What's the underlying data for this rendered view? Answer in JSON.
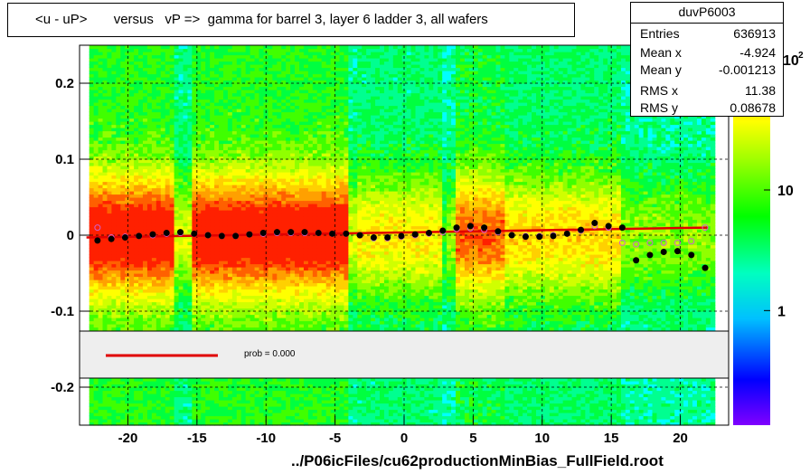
{
  "title": "<u - uP>       versus   vP =>  gamma for barrel 3, layer 6 ladder 3, all wafers",
  "footer": "../P06icFiles/cu62productionMinBias_FullField.root",
  "stats": {
    "name": "duvP6003",
    "rows": [
      {
        "key": "Entries",
        "value": "636913"
      },
      {
        "key": "Mean x",
        "value": "-4.924"
      },
      {
        "key": "Mean y",
        "value": "-0.001213"
      },
      {
        "key": "RMS x",
        "value": "11.38"
      },
      {
        "key": "RMS y",
        "value": "0.08678"
      }
    ]
  },
  "fit_legend": {
    "label": "prob = 0.000",
    "line_color": "#e00000"
  },
  "chart_data": {
    "type": "heatmap",
    "title": "<u - uP>       versus   vP =>  gamma for barrel 3, layer 6 ladder 3, all wafers",
    "xlabel": "",
    "ylabel": "",
    "xlim": [
      -23.5,
      23.5
    ],
    "ylim": [
      -0.25,
      0.25
    ],
    "x_ticks": [
      -20,
      -15,
      -10,
      -5,
      0,
      5,
      10,
      15,
      20
    ],
    "y_ticks": [
      -0.2,
      -0.1,
      0,
      0.1,
      0.2
    ],
    "y_tick_labels": [
      "-0.2",
      "-0.1",
      "0",
      "0.1",
      "0.2"
    ],
    "z_scale": "log",
    "z_ticks": [
      1,
      10
    ],
    "z_tick_labels": [
      "1",
      "10"
    ],
    "z_top_label": "10",
    "z_top_exponent": "2",
    "grid": true,
    "profile_mean": {
      "name": "mean",
      "color": "#000000",
      "x": [
        -22.2,
        -21.2,
        -20.2,
        -19.2,
        -18.2,
        -17.2,
        -16.2,
        -15.2,
        -14.2,
        -13.2,
        -12.2,
        -11.2,
        -10.2,
        -9.2,
        -8.2,
        -7.2,
        -6.2,
        -5.2,
        -4.2,
        -3.2,
        -2.2,
        -1.2,
        -0.2,
        0.8,
        1.8,
        2.8,
        3.8,
        4.8,
        5.8,
        6.8,
        7.8,
        8.8,
        9.8,
        10.8,
        11.8,
        12.8,
        13.8,
        14.8,
        15.8,
        16.8,
        17.8,
        18.8,
        19.8,
        20.8,
        21.8
      ],
      "y": [
        -0.007,
        -0.005,
        -0.003,
        -0.001,
        0.001,
        0.003,
        0.004,
        0.002,
        0.0,
        -0.001,
        -0.001,
        0.001,
        0.003,
        0.004,
        0.004,
        0.004,
        0.003,
        0.002,
        0.002,
        0.0,
        -0.003,
        -0.003,
        -0.001,
        0.001,
        0.003,
        0.006,
        0.01,
        0.012,
        0.01,
        0.005,
        0.0,
        -0.002,
        -0.002,
        -0.001,
        0.002,
        0.007,
        0.016,
        0.012,
        0.01,
        -0.033,
        -0.026,
        -0.022,
        -0.021,
        -0.026,
        -0.043
      ]
    },
    "profile_rms": {
      "name": "rms",
      "color": "#d060d0",
      "x": [
        -22.2,
        -21.2,
        -20.2,
        -19.2,
        -18.2,
        -17.2,
        -16.2,
        -15.2,
        -14.2,
        -13.2,
        -12.2,
        -11.2,
        -10.2,
        -9.2,
        -8.2,
        -7.2,
        -6.2,
        -5.2,
        -4.2,
        -3.2,
        -2.2,
        -1.2,
        -0.2,
        0.8,
        1.8,
        2.8,
        3.8,
        4.8,
        5.8,
        6.8,
        7.8,
        8.8,
        9.8,
        10.8,
        11.8,
        12.8,
        13.8,
        14.8,
        15.8,
        16.8,
        17.8,
        18.8,
        19.8,
        20.8,
        21.8
      ],
      "y": [
        0.01,
        -0.003,
        -0.002,
        -0.001,
        0.0,
        0.002,
        0.003,
        0.002,
        0.0,
        -0.001,
        -0.001,
        0.001,
        0.002,
        0.003,
        0.003,
        0.003,
        0.003,
        0.002,
        0.002,
        0.0,
        -0.004,
        -0.004,
        -0.002,
        0.0,
        0.002,
        0.004,
        0.008,
        0.009,
        0.007,
        0.004,
        0.0,
        -0.001,
        -0.001,
        0.0,
        0.002,
        0.006,
        0.012,
        0.01,
        -0.01,
        -0.012,
        -0.01,
        -0.01,
        -0.01,
        -0.008,
        0.01
      ]
    },
    "fit_line": {
      "name": "fit",
      "color": "#e00000",
      "x": [
        -23,
        22
      ],
      "y": [
        -0.003,
        0.01
      ]
    },
    "colors": {
      "low": "#00ff60",
      "core": "#e00000",
      "mid": "#ffaa00",
      "grid": "#000000"
    }
  }
}
